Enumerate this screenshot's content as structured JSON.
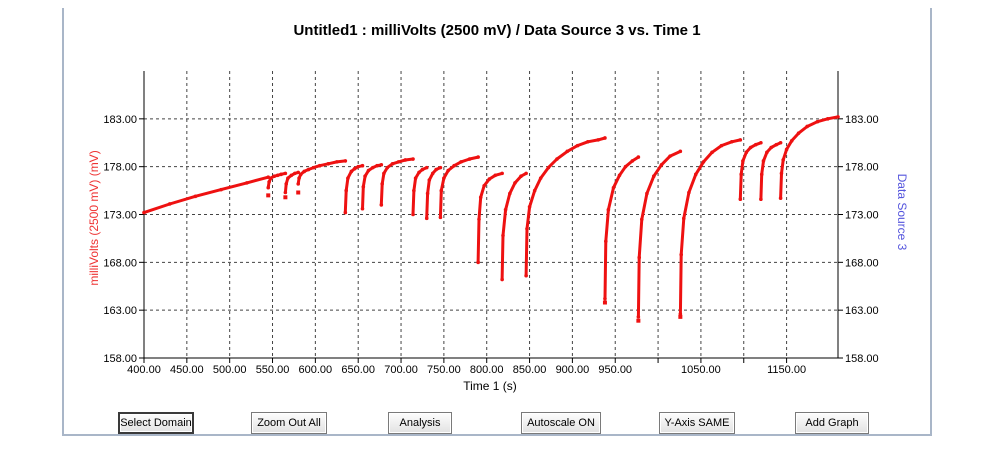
{
  "window": {
    "title": "Untitled1 : milliVolts (2500 mV) / Data Source 3 vs. Time 1"
  },
  "buttons": [
    {
      "label": "Select Domain",
      "focused": true
    },
    {
      "label": "Zoom Out All",
      "focused": false
    },
    {
      "label": "Analysis",
      "focused": false
    },
    {
      "label": "Autoscale ON",
      "focused": false
    },
    {
      "label": "Y-Axis SAME",
      "focused": false
    },
    {
      "label": "Add Graph",
      "focused": false
    }
  ],
  "chart_data": {
    "type": "scatter",
    "title": "Untitled1 : milliVolts (2500 mV) / Data Source 3 vs. Time 1",
    "xlabel": "Time 1 (s)",
    "ylabel_left": "milliVolts (2500 mV) (mV)",
    "ylabel_right": "Data Source 3",
    "xlim": [
      400,
      1210
    ],
    "ylim": [
      158,
      188
    ],
    "x_ticks": [
      "400.00",
      "450.00",
      "500.00",
      "550.00",
      "600.00",
      "650.00",
      "700.00",
      "750.00",
      "800.00",
      "850.00",
      "900.00",
      "950.00",
      "1050.00",
      "1150.00"
    ],
    "x_tick_values": [
      400,
      450,
      500,
      550,
      600,
      650,
      700,
      750,
      800,
      850,
      900,
      950,
      1050,
      1150
    ],
    "x_minor_ticks": [
      1000,
      1100
    ],
    "x_grid": [
      400,
      450,
      500,
      550,
      600,
      650,
      700,
      750,
      800,
      850,
      900,
      950,
      1000,
      1050,
      1100,
      1150
    ],
    "y_ticks": [
      "158.00",
      "163.00",
      "168.00",
      "173.00",
      "178.00",
      "183.00"
    ],
    "y_tick_values": [
      158,
      163,
      168,
      173,
      178,
      183
    ],
    "grid": true,
    "colors": {
      "series": "#ee1111",
      "left_label": "#ee3333",
      "right_label": "#5555dd",
      "grid": "#444444"
    },
    "series": [
      {
        "segments": [
          {
            "x": [
              400,
              430,
              460,
              490,
              520,
              545
            ],
            "y": [
              173.2,
              174.1,
              174.9,
              175.6,
              176.3,
              176.9
            ]
          },
          {
            "x": [
              545,
              546,
              548,
              552,
              556,
              560,
              565
            ],
            "y": [
              175.8,
              176.4,
              176.8,
              177.0,
              177.1,
              177.2,
              177.3
            ]
          },
          {
            "x": [
              565,
              566,
              568,
              572,
              576,
              580
            ],
            "y": [
              175.3,
              176.2,
              176.8,
              177.1,
              177.3,
              177.4
            ]
          },
          {
            "x": [
              580,
              581,
              583,
              587,
              592,
              598,
              605,
              615,
              625,
              635
            ],
            "y": [
              176.2,
              176.8,
              177.2,
              177.5,
              177.7,
              177.9,
              178.1,
              178.3,
              178.5,
              178.6
            ]
          },
          {
            "x": [
              635,
              636,
              638,
              642,
              646,
              650,
              655
            ],
            "y": [
              173.2,
              175.5,
              176.8,
              177.5,
              177.8,
              178.0,
              178.1
            ]
          },
          {
            "x": [
              655,
              656,
              658,
              662,
              667,
              672,
              677
            ],
            "y": [
              173.6,
              175.9,
              177.0,
              177.6,
              177.9,
              178.1,
              178.2
            ]
          },
          {
            "x": [
              677,
              678,
              680,
              684,
              690,
              697,
              705,
              714
            ],
            "y": [
              174.0,
              176.2,
              177.3,
              177.9,
              178.3,
              178.5,
              178.7,
              178.8
            ]
          },
          {
            "x": [
              714,
              715,
              717,
              721,
              725,
              730
            ],
            "y": [
              173.0,
              175.5,
              176.8,
              177.4,
              177.7,
              177.9
            ]
          },
          {
            "x": [
              730,
              731,
              733,
              737,
              741,
              746
            ],
            "y": [
              172.6,
              175.2,
              176.6,
              177.3,
              177.7,
              177.9
            ]
          },
          {
            "x": [
              746,
              747,
              750,
              755,
              762,
              770,
              780,
              790
            ],
            "y": [
              172.7,
              175.5,
              176.8,
              177.6,
              178.1,
              178.5,
              178.8,
              179.0
            ]
          },
          {
            "x": [
              790,
              791,
              793,
              797,
              803,
              810,
              818
            ],
            "y": [
              168.0,
              172.5,
              174.8,
              176.0,
              176.7,
              177.1,
              177.3
            ]
          },
          {
            "x": [
              818,
              819,
              822,
              827,
              833,
              840,
              846
            ],
            "y": [
              166.2,
              170.8,
              173.5,
              175.2,
              176.3,
              177.0,
              177.3
            ]
          },
          {
            "x": [
              846,
              847,
              850,
              856,
              863,
              872,
              882,
              894,
              906,
              918,
              930,
              938
            ],
            "y": [
              166.6,
              171.5,
              173.8,
              175.5,
              176.8,
              177.9,
              178.8,
              179.6,
              180.2,
              180.6,
              180.8,
              181.0
            ]
          },
          {
            "x": [
              938,
              939,
              942,
              948,
              955,
              962,
              970,
              977
            ],
            "y": [
              164.2,
              170.2,
              173.5,
              175.8,
              177.1,
              178.0,
              178.6,
              179.0
            ]
          },
          {
            "x": [
              977,
              978,
              981,
              987,
              995,
              1004,
              1014,
              1026
            ],
            "y": [
              162.3,
              168.5,
              172.5,
              175.2,
              177.0,
              178.2,
              179.1,
              179.6
            ]
          },
          {
            "x": [
              1026,
              1027,
              1030,
              1036,
              1044,
              1053,
              1063,
              1074,
              1086,
              1096
            ],
            "y": [
              162.6,
              168.8,
              172.6,
              175.3,
              177.2,
              178.5,
              179.5,
              180.2,
              180.6,
              180.8
            ]
          },
          {
            "x": [
              1096,
              1097,
              1099,
              1103,
              1108,
              1114,
              1120
            ],
            "y": [
              174.6,
              177.2,
              178.6,
              179.5,
              180.0,
              180.3,
              180.5
            ]
          },
          {
            "x": [
              1120,
              1121,
              1123,
              1127,
              1132,
              1138,
              1143
            ],
            "y": [
              174.6,
              177.2,
              178.6,
              179.5,
              180.0,
              180.3,
              180.5
            ]
          },
          {
            "x": [
              1143,
              1144,
              1146,
              1150,
              1156,
              1164,
              1174,
              1186,
              1198,
              1210
            ],
            "y": [
              174.7,
              177.3,
              178.7,
              179.8,
              180.7,
              181.5,
              182.2,
              182.7,
              183.0,
              183.2
            ]
          }
        ],
        "drop_markers": [
          {
            "x": 545,
            "y": 175.0
          },
          {
            "x": 565,
            "y": 174.8
          },
          {
            "x": 580,
            "y": 175.3
          },
          {
            "x": 938,
            "y": 163.8
          },
          {
            "x": 977,
            "y": 161.9
          },
          {
            "x": 1026,
            "y": 162.3
          }
        ]
      }
    ]
  }
}
